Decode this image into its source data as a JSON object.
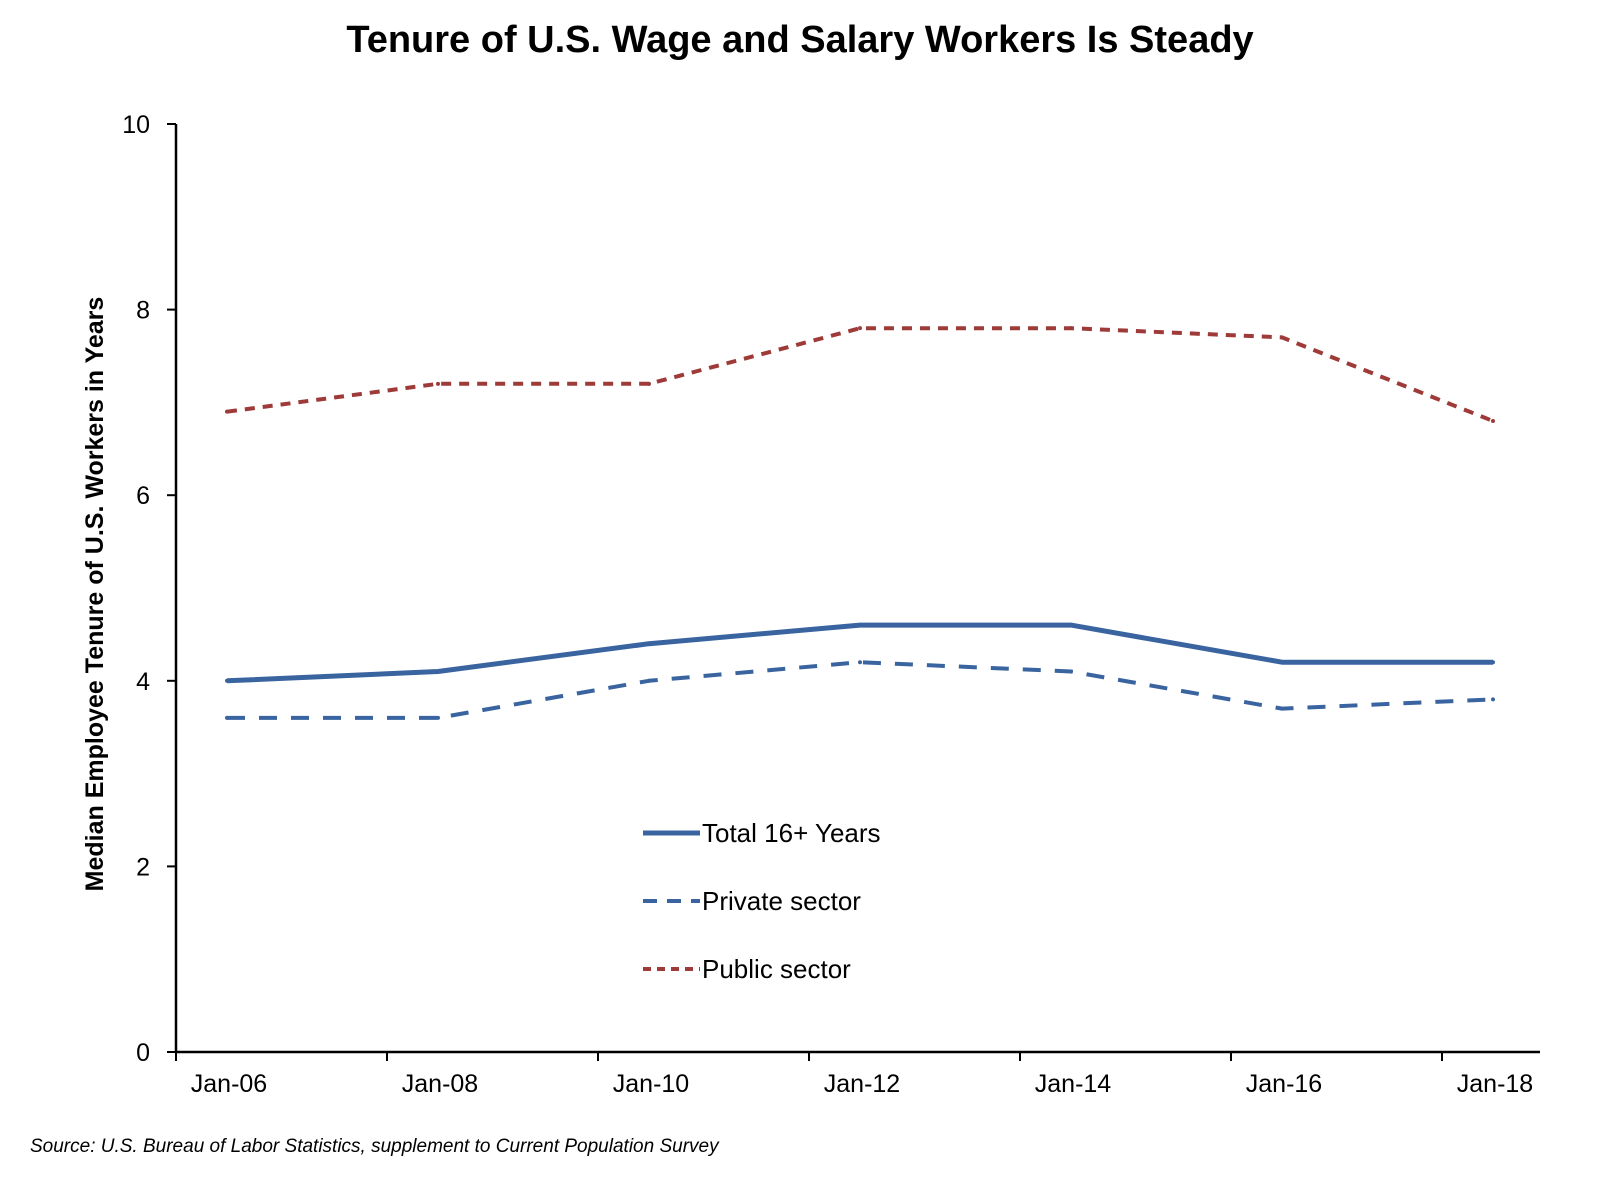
{
  "chart_data": {
    "type": "line",
    "title": "Tenure of U.S. Wage and Salary Workers Is Steady",
    "xlabel": "",
    "ylabel": "Median Employee Tenure of U.S. Workers in Years",
    "source": "Source: U.S. Bureau of Labor Statistics, supplement to Current Population Survey",
    "ylim": [
      0,
      10
    ],
    "y_ticks": [
      "0",
      "2",
      "4",
      "6",
      "8",
      "10"
    ],
    "x_tick_labels": [
      "Jan-06",
      "Jan-08",
      "Jan-10",
      "Jan-12",
      "Jan-14",
      "Jan-16",
      "Jan-18"
    ],
    "x": [
      "Jan-06",
      "Jan-08",
      "Jan-10",
      "Jan-12",
      "Jan-14",
      "Jan-16",
      "Jan-18"
    ],
    "grid": false,
    "legend_placement": "center-bottom",
    "series": [
      {
        "name": "Total 16+ Years",
        "values": [
          4.0,
          4.1,
          4.4,
          4.6,
          4.6,
          4.2,
          4.2
        ],
        "color": "#3A64A0",
        "style": "solid"
      },
      {
        "name": "Private sector",
        "values": [
          3.6,
          3.6,
          4.0,
          4.2,
          4.1,
          3.7,
          3.8
        ],
        "color": "#3A64A0",
        "style": "dashed"
      },
      {
        "name": "Public sector",
        "values": [
          6.9,
          7.2,
          7.2,
          7.8,
          7.8,
          7.7,
          6.8
        ],
        "color": "#9E3A38",
        "style": "dotted"
      }
    ]
  }
}
